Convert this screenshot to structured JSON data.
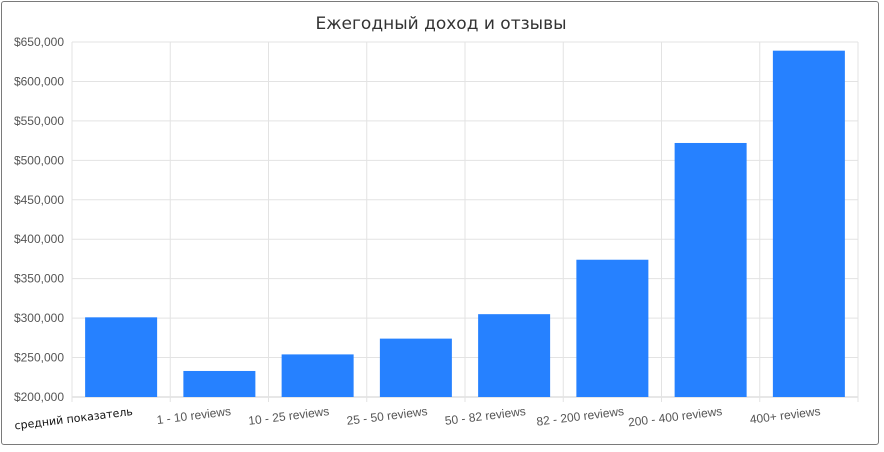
{
  "chart_data": {
    "type": "bar",
    "title": "Ежегодный доход и отзывы",
    "categories": [
      "средний показатель",
      "1 - 10 reviews",
      "10 - 25 reviews",
      "25 - 50 reviews",
      "50 - 82 reviews",
      "82 - 200 reviews",
      "200 - 400 reviews",
      "400+ reviews"
    ],
    "values": [
      301000,
      233000,
      254000,
      274000,
      305000,
      374000,
      522000,
      639000
    ],
    "ylim": [
      200000,
      650000
    ],
    "yticks": [
      "$200,000",
      "$250,000",
      "$300,000",
      "$350,000",
      "$400,000",
      "$450,000",
      "$500,000",
      "$550,000",
      "$600,000",
      "$650,000"
    ],
    "ytick_values": [
      200000,
      250000,
      300000,
      350000,
      400000,
      450000,
      500000,
      550000,
      600000,
      650000
    ],
    "grid": true,
    "bar_color": "#2681ff",
    "xlabel": "",
    "ylabel": ""
  }
}
